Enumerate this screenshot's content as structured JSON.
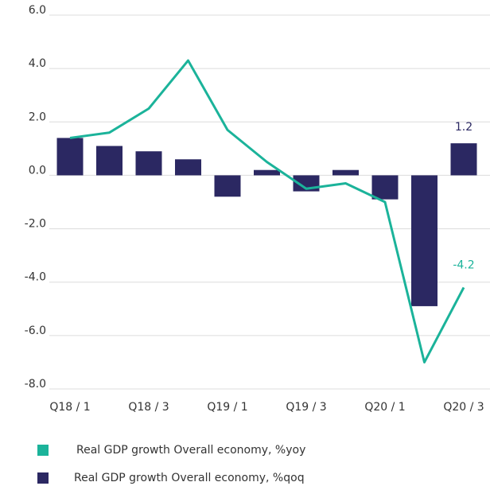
{
  "chart_data": {
    "type": "bar",
    "categories": [
      "Q18 / 1",
      null,
      "Q18 / 3",
      null,
      "Q19 / 1",
      null,
      "Q19 / 3",
      null,
      "Q20 / 1",
      null,
      "Q20 / 3"
    ],
    "series": [
      {
        "name": "Real GDP growth Overall economy, %yoy",
        "type": "line",
        "color": "#1bb39a",
        "values": [
          1.4,
          1.6,
          2.5,
          4.3,
          1.7,
          0.5,
          -0.5,
          -0.3,
          -1.0,
          -7.0,
          -4.2
        ],
        "value_labels": [
          null,
          null,
          null,
          null,
          null,
          null,
          null,
          null,
          null,
          null,
          "-4.2"
        ]
      },
      {
        "name": "Real GDP growth  Overall economy, %qoq",
        "type": "bar",
        "color": "#2b2862",
        "values": [
          1.4,
          1.1,
          0.9,
          0.6,
          -0.8,
          0.2,
          -0.6,
          0.2,
          -0.9,
          -4.9,
          1.2
        ],
        "value_labels": [
          null,
          null,
          null,
          null,
          null,
          null,
          null,
          null,
          null,
          null,
          "1.2"
        ]
      }
    ],
    "ylim": [
      -8,
      6
    ],
    "yticks": [
      {
        "value": -8,
        "label": "-8.0"
      },
      {
        "value": -6,
        "label": "-6.0"
      },
      {
        "value": -4,
        "label": "-4.0"
      },
      {
        "value": -2,
        "label": "-2.0"
      },
      {
        "value": 0,
        "label": "0.0"
      },
      {
        "value": 2,
        "label": "2.0"
      },
      {
        "value": 4,
        "label": "4.0"
      },
      {
        "value": 6,
        "label": "6.0"
      }
    ],
    "grid": true
  }
}
